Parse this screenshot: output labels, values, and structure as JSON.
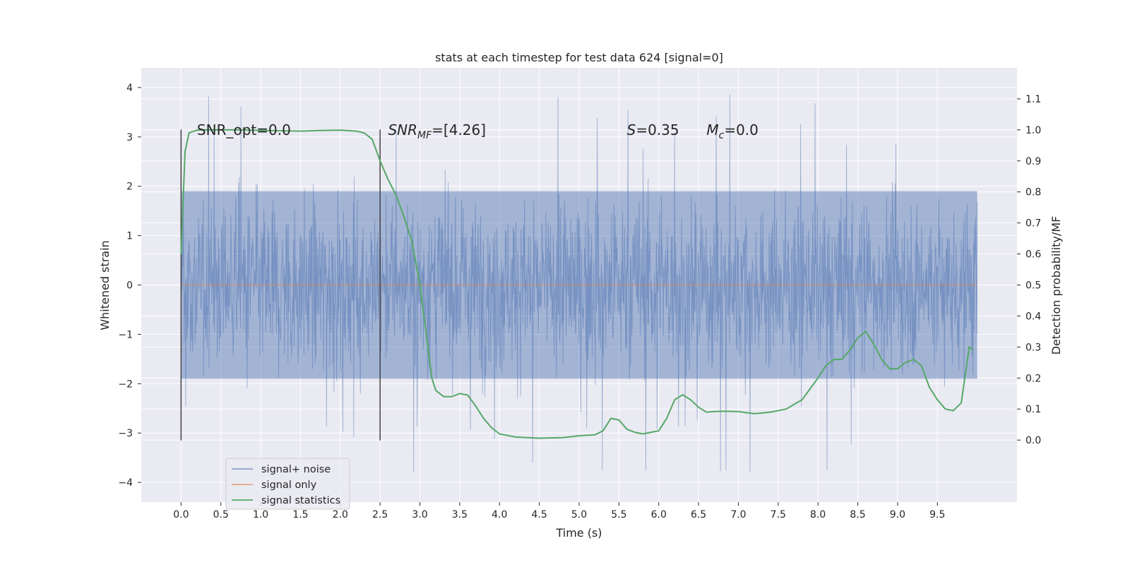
{
  "chart_data": {
    "type": "line",
    "title": "stats at each timestep for test data 624 [signal=0]",
    "xlabel": "Time (s)",
    "ylabel_left": "Whitened strain",
    "ylabel_right": "Detection probability/MF",
    "xlim": [
      -0.5,
      10.5
    ],
    "ylim_left": [
      -4.4,
      4.4
    ],
    "ylim_right": [
      -0.2,
      1.2
    ],
    "xticks": [
      "0.0",
      "0.5",
      "1.0",
      "1.5",
      "2.0",
      "2.5",
      "3.0",
      "3.5",
      "4.0",
      "4.5",
      "5.0",
      "5.5",
      "6.0",
      "6.5",
      "7.0",
      "7.5",
      "8.0",
      "8.5",
      "9.0",
      "9.5"
    ],
    "yticks_left": [
      "4",
      "3",
      "2",
      "1",
      "0",
      "−1",
      "−2",
      "−3",
      "−4"
    ],
    "yticks_right": [
      "1.1",
      "1.0",
      "0.9",
      "0.8",
      "0.7",
      "0.6",
      "0.5",
      "0.4",
      "0.3",
      "0.2",
      "0.1",
      "0.0"
    ],
    "grid": true,
    "legend_position": "lower-left",
    "colors": {
      "noise": "#4c72b0",
      "signal_only": "#dd8452",
      "statistics": "#55a868",
      "vline": "#444444",
      "plot_bg": "#eaeaf2",
      "grid": "#ffffff"
    },
    "series": [
      {
        "name": "signal+ noise",
        "x_range": [
          0.0,
          10.0
        ],
        "typical_band": [
          -1.9,
          1.9
        ],
        "peak_max": 4.0,
        "peak_min": -3.8
      },
      {
        "name": "signal only",
        "x_range": [
          0.0,
          10.0
        ],
        "values_constant": 0.0
      },
      {
        "name": "signal statistics",
        "x": [
          0.0,
          0.05,
          0.1,
          0.15,
          0.2,
          0.3,
          0.5,
          0.75,
          1.0,
          1.25,
          1.5,
          1.75,
          2.0,
          2.2,
          2.3,
          2.4,
          2.5,
          2.6,
          2.7,
          2.8,
          2.9,
          3.0,
          3.05,
          3.1,
          3.15,
          3.2,
          3.3,
          3.4,
          3.5,
          3.6,
          3.7,
          3.8,
          3.9,
          4.0,
          4.2,
          4.5,
          4.8,
          5.0,
          5.2,
          5.3,
          5.4,
          5.5,
          5.6,
          5.7,
          5.8,
          6.0,
          6.1,
          6.2,
          6.3,
          6.4,
          6.5,
          6.6,
          6.7,
          6.8,
          7.0,
          7.2,
          7.4,
          7.6,
          7.8,
          8.0,
          8.1,
          8.2,
          8.3,
          8.4,
          8.5,
          8.6,
          8.7,
          8.8,
          8.9,
          9.0,
          9.1,
          9.2,
          9.3,
          9.4,
          9.5,
          9.6,
          9.7,
          9.8,
          9.9,
          9.95
        ],
        "y": [
          0.6,
          0.93,
          0.99,
          0.995,
          0.999,
          1.0,
          1.0,
          1.0,
          0.998,
          0.997,
          0.996,
          0.998,
          0.999,
          0.996,
          0.99,
          0.97,
          0.9,
          0.84,
          0.79,
          0.72,
          0.64,
          0.5,
          0.4,
          0.3,
          0.2,
          0.16,
          0.14,
          0.14,
          0.15,
          0.145,
          0.11,
          0.07,
          0.04,
          0.02,
          0.01,
          0.006,
          0.008,
          0.014,
          0.017,
          0.03,
          0.07,
          0.065,
          0.035,
          0.025,
          0.02,
          0.03,
          0.07,
          0.13,
          0.146,
          0.13,
          0.106,
          0.09,
          0.092,
          0.093,
          0.092,
          0.085,
          0.09,
          0.1,
          0.13,
          0.2,
          0.24,
          0.26,
          0.26,
          0.29,
          0.33,
          0.35,
          0.31,
          0.26,
          0.23,
          0.23,
          0.25,
          0.26,
          0.24,
          0.17,
          0.13,
          0.1,
          0.095,
          0.12,
          0.3,
          0.29
        ]
      }
    ],
    "vlines": [
      0.0,
      2.5
    ],
    "annotations": [
      {
        "text": "SNR_opt=0.0",
        "x": 0.2,
        "y": 1.0
      },
      {
        "base": "SNR",
        "sub": "MF",
        "rest": "=[4.26]",
        "x": 2.6,
        "y": 1.0
      },
      {
        "text": "S=0.35",
        "x": 5.6,
        "y": 1.0
      },
      {
        "base": "M",
        "sub": "c",
        "rest": "=0.0",
        "x": 6.6,
        "y": 1.0
      }
    ],
    "legend": [
      {
        "label": "signal+ noise",
        "color": "#4c72b0"
      },
      {
        "label": "signal only",
        "color": "#dd8452"
      },
      {
        "label": "signal statistics",
        "color": "#55a868"
      }
    ]
  }
}
